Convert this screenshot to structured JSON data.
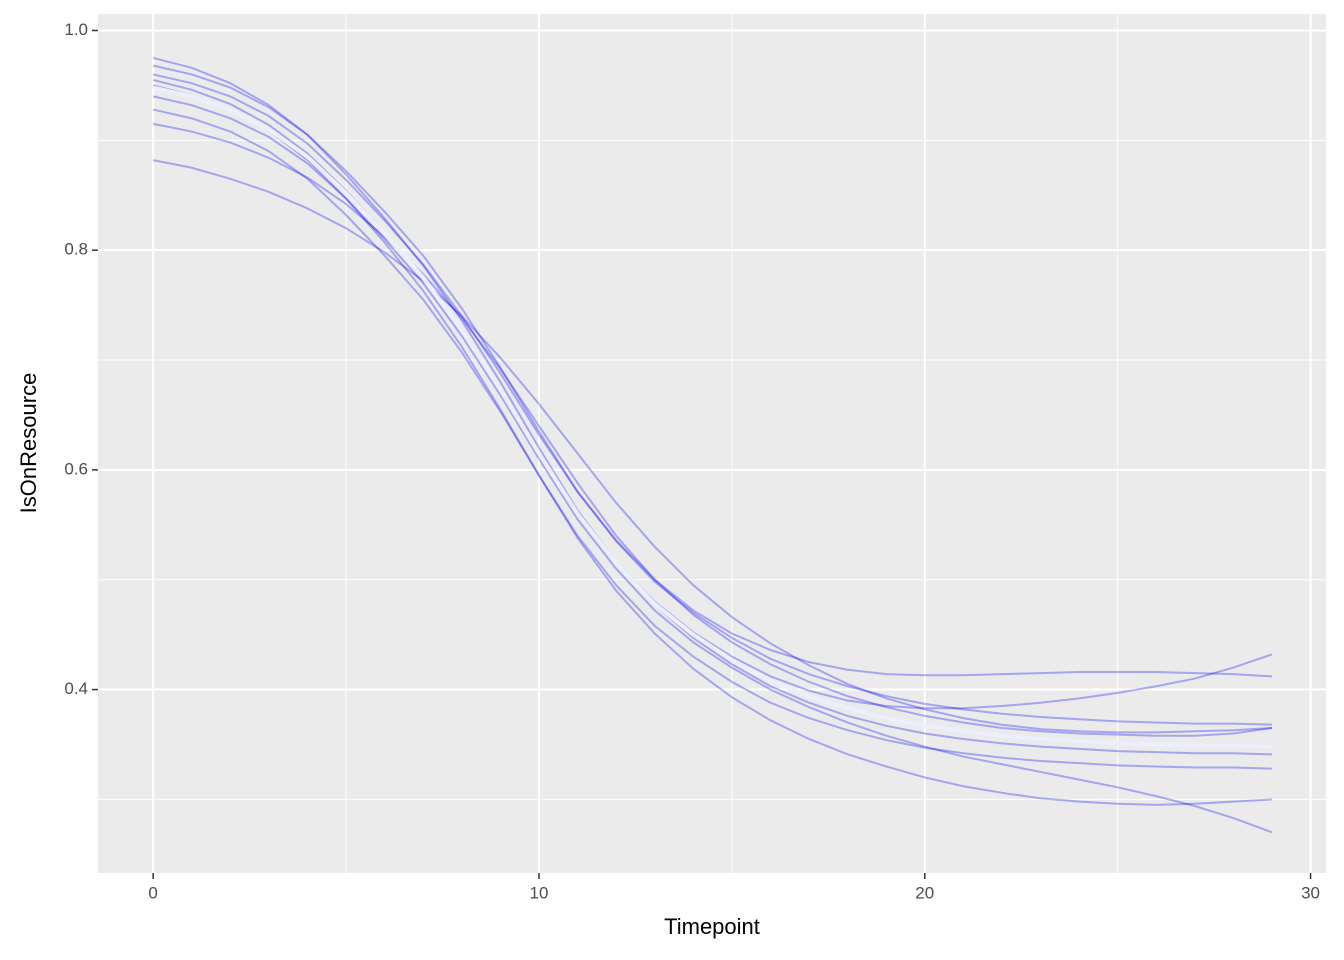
{
  "chart_data": {
    "type": "line",
    "x_label": "Timepoint",
    "y_label": "IsOnResource",
    "x": [
      0,
      1,
      2,
      3,
      4,
      5,
      6,
      7,
      8,
      9,
      10,
      11,
      12,
      13,
      14,
      15,
      16,
      17,
      18,
      19,
      20,
      21,
      22,
      23,
      24,
      25,
      26,
      27,
      28,
      29
    ],
    "xlim": [
      -1.43,
      30.4
    ],
    "ylim": [
      0.233,
      1.015
    ],
    "xticks": [
      0,
      10,
      20,
      30
    ],
    "yticks": [
      0.4,
      0.6,
      0.8,
      {
        "value": 1,
        "label": "1.0"
      }
    ],
    "x_minor_grid": [
      5,
      15,
      25
    ],
    "y_minor_grid": [
      0.3,
      0.5,
      0.7,
      0.9
    ],
    "grid": true,
    "background": "#ebebeb",
    "line_opacity": 0.3,
    "series": [
      {
        "color": "#0000ff",
        "values": [
          0.968,
          0.96,
          0.948,
          0.93,
          0.905,
          0.872,
          0.835,
          0.795,
          0.747,
          0.693,
          0.635,
          0.58,
          0.535,
          0.498,
          0.47,
          0.447,
          0.428,
          0.414,
          0.403,
          0.394,
          0.387,
          0.382,
          0.378,
          0.375,
          0.373,
          0.371,
          0.37,
          0.369,
          0.369,
          0.368
        ]
      },
      {
        "color": "#0000ff",
        "values": [
          0.928,
          0.92,
          0.908,
          0.89,
          0.865,
          0.832,
          0.795,
          0.755,
          0.707,
          0.653,
          0.595,
          0.54,
          0.495,
          0.458,
          0.43,
          0.407,
          0.388,
          0.374,
          0.363,
          0.354,
          0.347,
          0.342,
          0.338,
          0.335,
          0.333,
          0.331,
          0.33,
          0.329,
          0.329,
          0.328
        ]
      },
      {
        "color": "#0000ff",
        "values": [
          0.915,
          0.908,
          0.898,
          0.884,
          0.866,
          0.842,
          0.812,
          0.778,
          0.738,
          0.692,
          0.64,
          0.588,
          0.54,
          0.5,
          0.468,
          0.443,
          0.423,
          0.407,
          0.394,
          0.384,
          0.376,
          0.37,
          0.365,
          0.362,
          0.36,
          0.359,
          0.358,
          0.358,
          0.36,
          0.365
        ]
      },
      {
        "color": "#0000ff",
        "values": [
          0.955,
          0.946,
          0.933,
          0.914,
          0.888,
          0.854,
          0.816,
          0.774,
          0.726,
          0.672,
          0.614,
          0.56,
          0.516,
          0.48,
          0.452,
          0.43,
          0.412,
          0.399,
          0.39,
          0.385,
          0.383,
          0.383,
          0.385,
          0.388,
          0.392,
          0.397,
          0.403,
          0.41,
          0.42,
          0.432
        ]
      },
      {
        "color": "#0000ff",
        "values": [
          0.94,
          0.932,
          0.92,
          0.903,
          0.879,
          0.847,
          0.81,
          0.77,
          0.722,
          0.668,
          0.61,
          0.555,
          0.51,
          0.472,
          0.443,
          0.42,
          0.4,
          0.384,
          0.37,
          0.358,
          0.348,
          0.339,
          0.332,
          0.325,
          0.318,
          0.311,
          0.303,
          0.294,
          0.283,
          0.27
        ]
      },
      {
        "color": "#0000ff",
        "values": [
          0.882,
          0.875,
          0.865,
          0.853,
          0.838,
          0.82,
          0.798,
          0.772,
          0.74,
          0.702,
          0.66,
          0.615,
          0.57,
          0.53,
          0.495,
          0.466,
          0.442,
          0.422,
          0.405,
          0.392,
          0.382,
          0.374,
          0.368,
          0.364,
          0.362,
          0.361,
          0.361,
          0.362,
          0.363,
          0.365
        ]
      },
      {
        "color": "#0000ff",
        "values": [
          0.96,
          0.952,
          0.94,
          0.922,
          0.897,
          0.864,
          0.827,
          0.787,
          0.74,
          0.688,
          0.632,
          0.58,
          0.536,
          0.5,
          0.472,
          0.451,
          0.436,
          0.425,
          0.418,
          0.414,
          0.413,
          0.413,
          0.414,
          0.415,
          0.416,
          0.416,
          0.416,
          0.415,
          0.414,
          0.412
        ]
      },
      {
        "color": "#0000ff",
        "values": [
          0.95,
          0.941,
          0.928,
          0.909,
          0.882,
          0.847,
          0.807,
          0.763,
          0.712,
          0.655,
          0.595,
          0.538,
          0.49,
          0.451,
          0.419,
          0.393,
          0.372,
          0.355,
          0.341,
          0.33,
          0.32,
          0.312,
          0.306,
          0.301,
          0.298,
          0.296,
          0.295,
          0.296,
          0.298,
          0.3
        ]
      },
      {
        "color": "#0000ff",
        "values": [
          0.975,
          0.966,
          0.952,
          0.932,
          0.905,
          0.869,
          0.829,
          0.786,
          0.736,
          0.68,
          0.62,
          0.563,
          0.516,
          0.477,
          0.447,
          0.423,
          0.403,
          0.388,
          0.376,
          0.367,
          0.36,
          0.355,
          0.351,
          0.348,
          0.346,
          0.344,
          0.343,
          0.342,
          0.342,
          0.341
        ]
      },
      {
        "color": "#eeeeff",
        "values": [
          0.948,
          0.94,
          0.928,
          0.91,
          0.885,
          0.852,
          0.815,
          0.775,
          0.727,
          0.673,
          0.615,
          0.56,
          0.515,
          0.478,
          0.45,
          0.427,
          0.408,
          0.394,
          0.383,
          0.374,
          0.367,
          0.362,
          0.358,
          0.355,
          0.353,
          0.351,
          0.35,
          0.349,
          0.349,
          0.348
        ]
      }
    ]
  }
}
